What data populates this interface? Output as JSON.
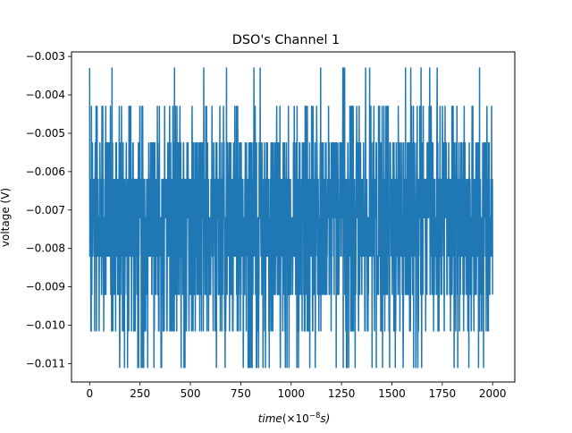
{
  "chart_data": {
    "type": "line",
    "title": "DSO's Channel 1",
    "xlabel_prefix": "time",
    "xlabel_suffix": "(×10",
    "xlabel_exp": "−8",
    "xlabel_unit": "s)",
    "ylabel": "voltage (V)",
    "xlim": [
      -90,
      2110
    ],
    "ylim": [
      -0.01148,
      -0.00288
    ],
    "x_ticks": [
      0,
      250,
      500,
      750,
      1000,
      1250,
      1500,
      1750,
      2000
    ],
    "x_tick_labels": [
      "0",
      "250",
      "500",
      "750",
      "1000",
      "1250",
      "1500",
      "1750",
      "2000"
    ],
    "y_ticks": [
      -0.003,
      -0.004,
      -0.005,
      -0.006,
      -0.007,
      -0.008,
      -0.009,
      -0.01,
      -0.011
    ],
    "y_tick_labels": [
      "−0.003",
      "−0.004",
      "−0.005",
      "−0.006",
      "−0.007",
      "−0.008",
      "−0.009",
      "−0.010",
      "−0.011"
    ],
    "grid": false,
    "series_color": "#1f77b4",
    "series": [
      {
        "x_start": 0,
        "x_end": 2000,
        "num_points": 2000,
        "quantization_levels": [
          -0.0033,
          -0.0043,
          -0.00525,
          -0.0062,
          -0.0072,
          -0.0082,
          -0.0092,
          -0.01015,
          -0.0111
        ],
        "level_weights": [
          0.01,
          0.04,
          0.12,
          0.18,
          0.26,
          0.18,
          0.12,
          0.06,
          0.03
        ],
        "min": -0.0111,
        "max": -0.0033
      }
    ]
  }
}
